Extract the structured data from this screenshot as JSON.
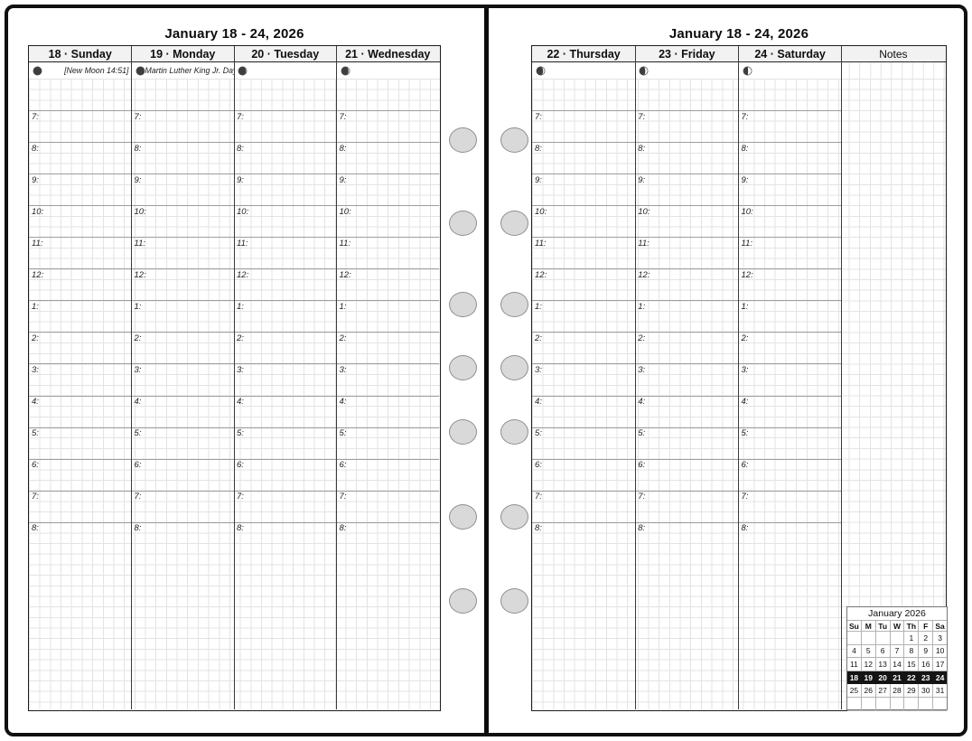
{
  "left_page": {
    "title": "January 18 - 24, 2026",
    "day_columns": [
      {
        "header": "18 · Sunday",
        "event": "[New Moon 14:51]",
        "moon": {
          "name": "new-moon",
          "illumination": 0.0
        }
      },
      {
        "header": "19 · Monday",
        "event": "Martin Luther King Jr. Day",
        "moon": {
          "name": "waxing-crescent",
          "illumination": 0.04
        }
      },
      {
        "header": "20 · Tuesday",
        "event": "",
        "moon": {
          "name": "waxing-crescent",
          "illumination": 0.09
        }
      },
      {
        "header": "21 · Wednesday",
        "event": "",
        "moon": {
          "name": "waxing-crescent",
          "illumination": 0.14
        }
      }
    ]
  },
  "right_page": {
    "title": "January 18 - 24, 2026",
    "notes_header": "Notes",
    "day_columns": [
      {
        "header": "22 · Thursday",
        "event": "",
        "moon": {
          "name": "waxing-crescent",
          "illumination": 0.2
        }
      },
      {
        "header": "23 · Friday",
        "event": "",
        "moon": {
          "name": "waxing-crescent",
          "illumination": 0.3
        }
      },
      {
        "header": "24 · Saturday",
        "event": "",
        "moon": {
          "name": "waxing-crescent",
          "illumination": 0.43
        }
      }
    ]
  },
  "time_labels": [
    "7:",
    "8:",
    "9:",
    "10:",
    "11:",
    "12:",
    "1:",
    "2:",
    "3:",
    "4:",
    "5:",
    "6:",
    "7:",
    "8:"
  ],
  "mini_calendar": {
    "title": "January 2026",
    "day_headers": [
      "Su",
      "M",
      "Tu",
      "W",
      "Th",
      "F",
      "Sa"
    ],
    "weeks": [
      [
        "",
        "",
        "",
        "",
        "1",
        "2",
        "3"
      ],
      [
        "4",
        "5",
        "6",
        "7",
        "8",
        "9",
        "10"
      ],
      [
        "11",
        "12",
        "13",
        "14",
        "15",
        "16",
        "17"
      ],
      [
        "18",
        "19",
        "20",
        "21",
        "22",
        "23",
        "24"
      ],
      [
        "25",
        "26",
        "27",
        "28",
        "29",
        "30",
        "31"
      ],
      [
        "",
        "",
        "",
        "",
        "",
        "",
        ""
      ]
    ],
    "highlighted_week_index": 3
  },
  "colors": {
    "header_bg": "#f2f2f2",
    "grid_line": "#e3e3e3",
    "hour_line": "#9e9e9e",
    "column_divider": "#3a3a3a",
    "hole_fill": "#d9d9d9",
    "highlight_bg": "#141414",
    "moon_fill": "#3d3d3d"
  }
}
